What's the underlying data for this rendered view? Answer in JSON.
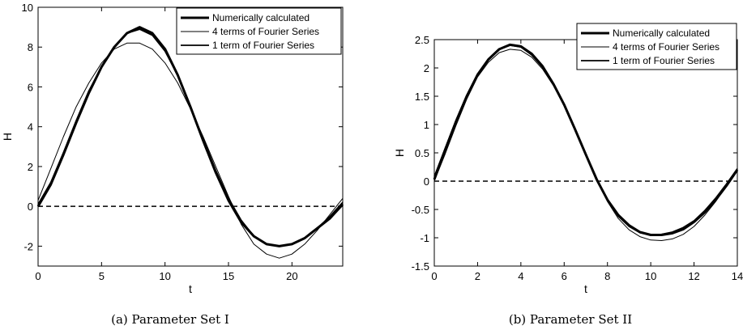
{
  "chart_data": [
    {
      "type": "line",
      "caption": "(a) Parameter Set I",
      "xlabel": "t",
      "ylabel": "H",
      "xlim": [
        0,
        24
      ],
      "ylim": [
        -3,
        10
      ],
      "xticks": [
        "0",
        "5",
        "10",
        "15",
        "20"
      ],
      "yticks": [
        "-2",
        "0",
        "2",
        "4",
        "6",
        "8",
        "10"
      ],
      "legend_position": "top-right",
      "series": [
        {
          "name": "Numerically calculated",
          "style": "thick",
          "x": [
            0,
            1,
            2,
            3,
            4,
            5,
            6,
            7,
            8,
            9,
            10,
            11,
            12,
            13,
            14,
            15,
            16,
            17,
            18,
            19,
            20,
            21,
            22,
            23,
            24
          ],
          "y": [
            0.0,
            1.1,
            2.6,
            4.2,
            5.7,
            7.0,
            8.0,
            8.7,
            9.0,
            8.7,
            7.9,
            6.6,
            5.0,
            3.3,
            1.7,
            0.3,
            -0.8,
            -1.5,
            -1.9,
            -2.0,
            -1.9,
            -1.6,
            -1.1,
            -0.6,
            0.1
          ]
        },
        {
          "name": "4 terms of Fourier Series",
          "style": "thin",
          "x": [
            0,
            1,
            2,
            3,
            4,
            5,
            6,
            7,
            8,
            9,
            10,
            11,
            12,
            13,
            14,
            15,
            16,
            17,
            18,
            19,
            20,
            21,
            22,
            23,
            24
          ],
          "y": [
            0.3,
            1.9,
            3.5,
            5.0,
            6.2,
            7.2,
            7.9,
            8.2,
            8.2,
            7.9,
            7.2,
            6.2,
            4.9,
            3.5,
            2.0,
            0.5,
            -0.9,
            -1.9,
            -2.4,
            -2.6,
            -2.4,
            -1.9,
            -1.2,
            -0.4,
            0.4
          ]
        },
        {
          "name": "1 term of Fourier Series",
          "style": "normal",
          "x": [
            0,
            1,
            2,
            3,
            4,
            5,
            6,
            7,
            8,
            9,
            10,
            11,
            12,
            13,
            14,
            15,
            16,
            17,
            18,
            19,
            20,
            21,
            22,
            23,
            24
          ],
          "y": [
            0.1,
            1.2,
            2.7,
            4.3,
            5.8,
            7.0,
            8.0,
            8.7,
            8.9,
            8.6,
            7.8,
            6.6,
            5.0,
            3.4,
            1.8,
            0.4,
            -0.7,
            -1.5,
            -1.9,
            -2.0,
            -1.9,
            -1.6,
            -1.1,
            -0.5,
            0.2
          ]
        }
      ],
      "reference_line": {
        "y": 0,
        "style": "dashed"
      }
    },
    {
      "type": "line",
      "caption": "(b) Parameter Set II",
      "xlabel": "t",
      "ylabel": "H",
      "xlim": [
        0,
        14
      ],
      "ylim": [
        -1.5,
        2.5
      ],
      "xticks": [
        "0",
        "2",
        "4",
        "6",
        "8",
        "10",
        "12",
        "14"
      ],
      "yticks": [
        "-1.5",
        "-1",
        "-0.5",
        "0",
        "0.5",
        "1",
        "1.5",
        "2",
        "2.5"
      ],
      "legend_position": "top-right",
      "series": [
        {
          "name": "Numerically calculated",
          "style": "thick",
          "x": [
            0,
            0.5,
            1,
            1.5,
            2,
            2.5,
            3,
            3.5,
            4,
            4.5,
            5,
            5.5,
            6,
            6.5,
            7,
            7.5,
            8,
            8.5,
            9,
            9.5,
            10,
            10.5,
            11,
            11.5,
            12,
            12.5,
            13,
            13.5,
            14
          ],
          "y": [
            0.03,
            0.55,
            1.05,
            1.5,
            1.88,
            2.15,
            2.33,
            2.41,
            2.38,
            2.25,
            2.03,
            1.72,
            1.35,
            0.92,
            0.47,
            0.03,
            -0.33,
            -0.6,
            -0.78,
            -0.9,
            -0.95,
            -0.95,
            -0.92,
            -0.85,
            -0.72,
            -0.55,
            -0.33,
            -0.08,
            0.2
          ]
        },
        {
          "name": "4 terms of Fourier Series",
          "style": "thin",
          "x": [
            0,
            0.5,
            1,
            1.5,
            2,
            2.5,
            3,
            3.5,
            4,
            4.5,
            5,
            5.5,
            6,
            6.5,
            7,
            7.5,
            8,
            8.5,
            9,
            9.5,
            10,
            10.5,
            11,
            11.5,
            12,
            12.5,
            13,
            13.5,
            14
          ],
          "y": [
            0.0,
            0.48,
            0.98,
            1.45,
            1.84,
            2.1,
            2.27,
            2.33,
            2.31,
            2.19,
            1.98,
            1.69,
            1.33,
            0.92,
            0.48,
            0.04,
            -0.36,
            -0.66,
            -0.86,
            -0.98,
            -1.04,
            -1.05,
            -1.02,
            -0.94,
            -0.8,
            -0.6,
            -0.36,
            -0.08,
            0.22
          ]
        },
        {
          "name": "1 term of Fourier Series",
          "style": "normal",
          "x": [
            0,
            0.5,
            1,
            1.5,
            2,
            2.5,
            3,
            3.5,
            4,
            4.5,
            5,
            5.5,
            6,
            6.5,
            7,
            7.5,
            8,
            8.5,
            9,
            9.5,
            10,
            10.5,
            11,
            11.5,
            12,
            12.5,
            13,
            13.5,
            14
          ],
          "y": [
            0.08,
            0.58,
            1.07,
            1.52,
            1.89,
            2.16,
            2.33,
            2.4,
            2.37,
            2.23,
            2.01,
            1.71,
            1.34,
            0.92,
            0.48,
            0.05,
            -0.33,
            -0.62,
            -0.8,
            -0.91,
            -0.95,
            -0.94,
            -0.9,
            -0.82,
            -0.7,
            -0.52,
            -0.3,
            -0.05,
            0.22
          ]
        }
      ],
      "reference_line": {
        "y": 0,
        "style": "dashed"
      }
    }
  ]
}
